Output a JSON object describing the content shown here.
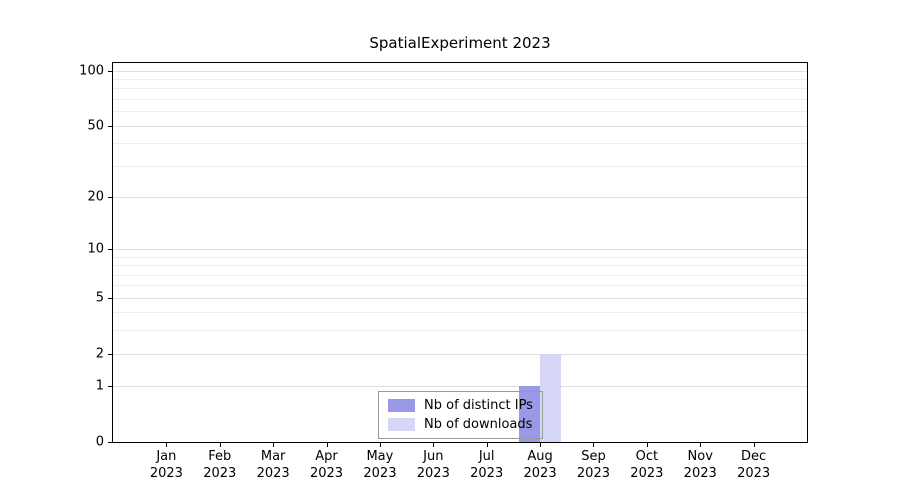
{
  "title": "SpatialExperiment 2023",
  "chart_data": {
    "type": "bar",
    "title": "SpatialExperiment 2023",
    "xlabel": "",
    "ylabel": "",
    "yscale": "log1p",
    "ylim": [
      0,
      110
    ],
    "yticks": [
      0,
      1,
      2,
      5,
      10,
      20,
      50,
      100
    ],
    "minor_gridlines": [
      3,
      4,
      6,
      7,
      8,
      9,
      30,
      40,
      60,
      70,
      80,
      90
    ],
    "grid": true,
    "legend_position": "lower center",
    "categories": [
      "Jan 2023",
      "Feb 2023",
      "Mar 2023",
      "Apr 2023",
      "May 2023",
      "Jun 2023",
      "Jul 2023",
      "Aug 2023",
      "Sep 2023",
      "Oct 2023",
      "Nov 2023",
      "Dec 2023"
    ],
    "series": [
      {
        "name": "Nb of distinct IPs",
        "color": "#9999e8",
        "values": [
          0,
          0,
          0,
          0,
          0,
          0,
          0,
          1,
          0,
          0,
          0,
          0
        ]
      },
      {
        "name": "Nb of downloads",
        "color": "#d6d6f6",
        "values": [
          0,
          0,
          0,
          0,
          0,
          0,
          0,
          2,
          0,
          0,
          0,
          0
        ]
      }
    ]
  },
  "colors": {
    "plot_background": "#ffffff",
    "axis": "#000000",
    "grid_major": "#dedede",
    "grid_minor": "#ededed",
    "legend_border": "#999999",
    "text": "#000000"
  }
}
